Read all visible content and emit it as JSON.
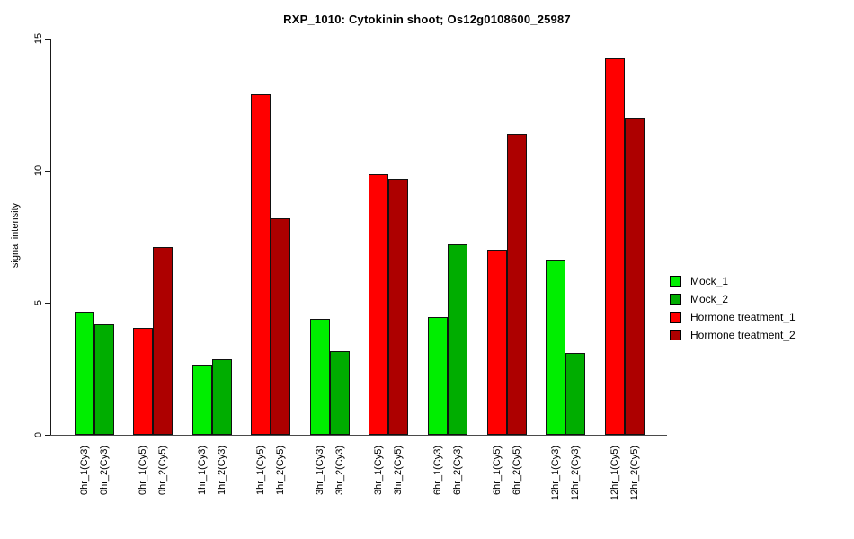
{
  "chart_data": {
    "type": "bar",
    "title": "RXP_1010: Cytokinin shoot; Os12g0108600_25987",
    "xlabel": "",
    "ylabel": "signal intensity",
    "ylim": [
      0,
      15
    ],
    "yticks": [
      "0",
      "5",
      "10",
      "15"
    ],
    "grid": false,
    "legend_position": "right-outside",
    "background_color": "#ffffff",
    "series": [
      {
        "name": "Mock_1",
        "color": "#00EE00"
      },
      {
        "name": "Mock_2",
        "color": "#00AD00"
      },
      {
        "name": "Hormone treatment_1",
        "color": "#FF0000"
      },
      {
        "name": "Hormone treatment_2",
        "color": "#AD0000"
      }
    ],
    "pair_size": 2,
    "bars": [
      {
        "label": "0hr_1(Cy3)",
        "value": 4.65,
        "series": 0
      },
      {
        "label": "0hr_2(Cy3)",
        "value": 4.2,
        "series": 1
      },
      {
        "label": "0hr_1(Cy5)",
        "value": 4.05,
        "series": 2
      },
      {
        "label": "0hr_2(Cy5)",
        "value": 7.1,
        "series": 3
      },
      {
        "label": "1hr_1(Cy3)",
        "value": 2.65,
        "series": 0
      },
      {
        "label": "1hr_2(Cy3)",
        "value": 2.85,
        "series": 1
      },
      {
        "label": "1hr_1(Cy5)",
        "value": 12.9,
        "series": 2
      },
      {
        "label": "1hr_2(Cy5)",
        "value": 8.2,
        "series": 3
      },
      {
        "label": "3hr_1(Cy3)",
        "value": 4.4,
        "series": 0
      },
      {
        "label": "3hr_2(Cy3)",
        "value": 3.15,
        "series": 1
      },
      {
        "label": "3hr_1(Cy5)",
        "value": 9.85,
        "series": 2
      },
      {
        "label": "3hr_2(Cy5)",
        "value": 9.7,
        "series": 3
      },
      {
        "label": "6hr_1(Cy3)",
        "value": 4.45,
        "series": 0
      },
      {
        "label": "6hr_2(Cy3)",
        "value": 7.2,
        "series": 1
      },
      {
        "label": "6hr_1(Cy5)",
        "value": 7.0,
        "series": 2
      },
      {
        "label": "6hr_2(Cy5)",
        "value": 11.4,
        "series": 3
      },
      {
        "label": "12hr_1(Cy3)",
        "value": 6.65,
        "series": 0
      },
      {
        "label": "12hr_2(Cy3)",
        "value": 3.1,
        "series": 1
      },
      {
        "label": "12hr_1(Cy5)",
        "value": 14.25,
        "series": 2
      },
      {
        "label": "12hr_2(Cy5)",
        "value": 12.0,
        "series": 3
      }
    ]
  }
}
